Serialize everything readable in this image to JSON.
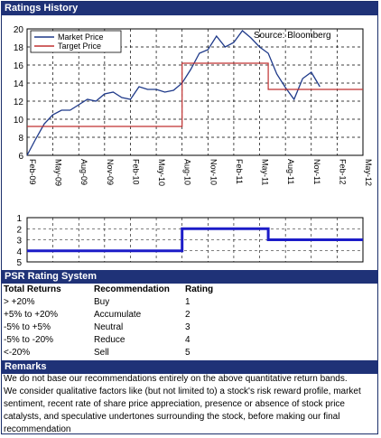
{
  "sections": {
    "ratings_history": "Ratings History",
    "psr": "PSR Rating System",
    "remarks": "Remarks"
  },
  "chart_data": [
    {
      "type": "line",
      "title": "",
      "source_label": "Source: Bloomberg",
      "xlabel": "",
      "ylabel": "",
      "ylim": [
        6,
        20
      ],
      "yticks": [
        6,
        8,
        10,
        12,
        14,
        16,
        18,
        20
      ],
      "xticks": [
        "Feb-09",
        "May-09",
        "Aug-09",
        "Nov-09",
        "Feb-10",
        "May-10",
        "Aug-10",
        "Nov-10",
        "Feb-11",
        "May-11",
        "Aug-11",
        "Nov-11",
        "Feb-12",
        "May-12"
      ],
      "grid": true,
      "legend": "top-left",
      "series": [
        {
          "name": "Market Price",
          "color": "#1f3a8a",
          "points": [
            [
              "Feb-09",
              6.0
            ],
            [
              "Mar-09",
              7.8
            ],
            [
              "Apr-09",
              9.5
            ],
            [
              "May-09",
              10.5
            ],
            [
              "Jun-09",
              11.0
            ],
            [
              "Jul-09",
              11.0
            ],
            [
              "Aug-09",
              11.6
            ],
            [
              "Sep-09",
              12.2
            ],
            [
              "Oct-09",
              12.0
            ],
            [
              "Nov-09",
              12.8
            ],
            [
              "Dec-09",
              13.0
            ],
            [
              "Jan-10",
              12.4
            ],
            [
              "Feb-10",
              12.2
            ],
            [
              "Mar-10",
              13.6
            ],
            [
              "Apr-10",
              13.3
            ],
            [
              "May-10",
              13.3
            ],
            [
              "Jun-10",
              13.0
            ],
            [
              "Jul-10",
              13.2
            ],
            [
              "Aug-10",
              14.0
            ],
            [
              "Sep-10",
              15.5
            ],
            [
              "Oct-10",
              17.3
            ],
            [
              "Nov-10",
              17.7
            ],
            [
              "Dec-10",
              19.2
            ],
            [
              "Jan-11",
              18.0
            ],
            [
              "Feb-11",
              18.5
            ],
            [
              "Mar-11",
              19.8
            ],
            [
              "Apr-11",
              19.0
            ],
            [
              "May-11",
              18.0
            ],
            [
              "Jun-11",
              17.3
            ],
            [
              "Jul-11",
              15.0
            ],
            [
              "Aug-11",
              13.5
            ],
            [
              "Sep-11",
              12.2
            ],
            [
              "Oct-11",
              14.5
            ],
            [
              "Nov-11",
              15.2
            ],
            [
              "Dec-11",
              13.6
            ]
          ]
        },
        {
          "name": "Target Price",
          "color": "#c03030",
          "points": [
            [
              "Feb-09",
              9.2
            ],
            [
              "Aug-10",
              9.2
            ],
            [
              "Aug-10",
              16.2
            ],
            [
              "Jun-11",
              16.2
            ],
            [
              "Jun-11",
              13.3
            ],
            [
              "May-12",
              13.3
            ]
          ]
        }
      ]
    },
    {
      "type": "line",
      "title": "",
      "ylim": [
        1,
        5
      ],
      "yticks": [
        1,
        2,
        3,
        4,
        5
      ],
      "ylim_inverted": true,
      "grid": true,
      "series": [
        {
          "name": "",
          "color": "#1c1cc8",
          "points": [
            [
              "Feb-09",
              4
            ],
            [
              "Aug-10",
              4
            ],
            [
              "Aug-10",
              2
            ],
            [
              "Jun-11",
              2
            ],
            [
              "Jun-11",
              3
            ],
            [
              "May-12",
              3
            ]
          ]
        }
      ]
    }
  ],
  "psr_table": {
    "headers": [
      "Total Returns",
      "Recommendation",
      "Rating"
    ],
    "rows": [
      [
        "> +20%",
        "Buy",
        "1"
      ],
      [
        "+5% to +20%",
        "Accumulate",
        "2"
      ],
      [
        "-5% to +5%",
        "Neutral",
        "3"
      ],
      [
        "-5% to -20%",
        "Reduce",
        "4"
      ],
      [
        "<-20%",
        "Sell",
        "5"
      ]
    ]
  },
  "remarks": {
    "lines": [
      "We do not base our recommendations entirely on the  above quantitative return bands.",
      "We consider qualitative factors like (but not limited to) a stock's risk reward profile, market sentiment, recent rate of share price appreciation, presence or absence of stock price catalysts, and speculative undertones surrounding the stock, before making our final recommendation"
    ]
  }
}
